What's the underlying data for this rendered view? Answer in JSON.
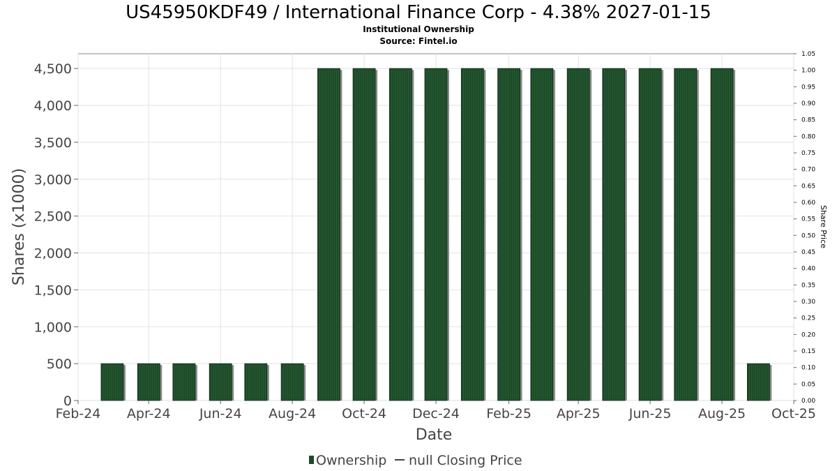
{
  "chart_data": {
    "type": "bar",
    "title": "US45950KDF49 / International Finance Corp - 4.38% 2027-01-15",
    "subtitle": "Institutional Ownership",
    "source": "Source: Fintel.io",
    "xlabel": "Date",
    "ylabel": "Shares (x1000)",
    "y2label": "Share Price",
    "xlim": [
      "2024-02-01",
      "2025-10-01"
    ],
    "ylim": [
      0,
      4700
    ],
    "y2lim": [
      0,
      1.05
    ],
    "x_tick_labels": [
      "Feb-24",
      "Apr-24",
      "Jun-24",
      "Aug-24",
      "Oct-24",
      "Dec-24",
      "Feb-25",
      "Apr-25",
      "Jun-25",
      "Aug-25",
      "Oct-25"
    ],
    "y_tick_labels": [
      "0",
      "500",
      "1,000",
      "1,500",
      "2,000",
      "2,500",
      "3,000",
      "3,500",
      "4,000",
      "4,500"
    ],
    "y2_tick_labels": [
      "0.00",
      "0.05",
      "0.10",
      "0.15",
      "0.20",
      "0.25",
      "0.30",
      "0.35",
      "0.40",
      "0.45",
      "0.50",
      "0.55",
      "0.60",
      "0.65",
      "0.70",
      "0.75",
      "0.80",
      "0.85",
      "0.90",
      "0.95",
      "1.00",
      "1.05"
    ],
    "grid": true,
    "legend_position": "bottom",
    "series": [
      {
        "name": "Ownership",
        "color": "#1d4a28",
        "x": [
          "2024-03-01",
          "2024-04-01",
          "2024-05-01",
          "2024-06-01",
          "2024-07-01",
          "2024-08-01",
          "2024-09-01",
          "2024-10-01",
          "2024-11-01",
          "2024-12-01",
          "2025-01-01",
          "2025-02-01",
          "2025-03-01",
          "2025-04-01",
          "2025-05-01",
          "2025-06-01",
          "2025-07-01",
          "2025-08-01",
          "2025-09-01"
        ],
        "values": [
          500,
          500,
          500,
          500,
          500,
          500,
          4500,
          4500,
          4500,
          4500,
          4500,
          4500,
          4500,
          4500,
          4500,
          4500,
          4500,
          4500,
          500
        ]
      },
      {
        "name": "null Closing Price",
        "color": "#444444",
        "values": []
      }
    ]
  }
}
